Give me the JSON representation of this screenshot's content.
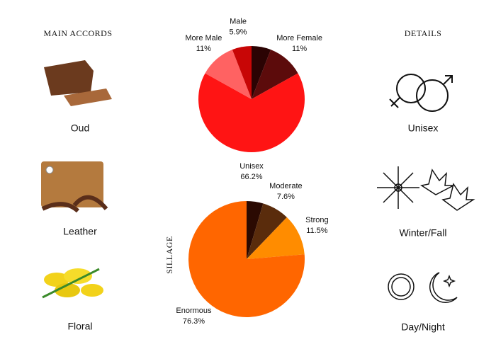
{
  "page": {
    "accords_title": "MAIN ACCORDS",
    "details_title": "DETAILS",
    "accords": [
      "Oud",
      "Leather",
      "Floral"
    ],
    "details": [
      "Unisex",
      "Winter/Fall",
      "Day/Night"
    ]
  },
  "chart_data": [
    {
      "type": "pie",
      "categories": [
        null,
        "More Female",
        "Unisex",
        "More Male",
        "Male"
      ],
      "values": [
        5.9,
        11,
        66.2,
        11,
        5.9
      ],
      "value_labels": [
        null,
        "11%",
        "66.2%",
        "11%",
        "5.9%"
      ],
      "colors": [
        "#2b0303",
        "#5c0b0b",
        "#ff1414",
        "#ff6262",
        "#c80606"
      ]
    },
    {
      "type": "pie",
      "title": "SILLAGE",
      "categories": [
        null,
        "Moderate",
        "Strong",
        "Enormous"
      ],
      "values": [
        4.6,
        7.6,
        11.5,
        76.3
      ],
      "value_labels": [
        null,
        "7.6%",
        "11.5%",
        "76.3%"
      ],
      "colors": [
        "#2b0a02",
        "#5a2c0c",
        "#ff8c00",
        "#ff6600"
      ]
    }
  ]
}
